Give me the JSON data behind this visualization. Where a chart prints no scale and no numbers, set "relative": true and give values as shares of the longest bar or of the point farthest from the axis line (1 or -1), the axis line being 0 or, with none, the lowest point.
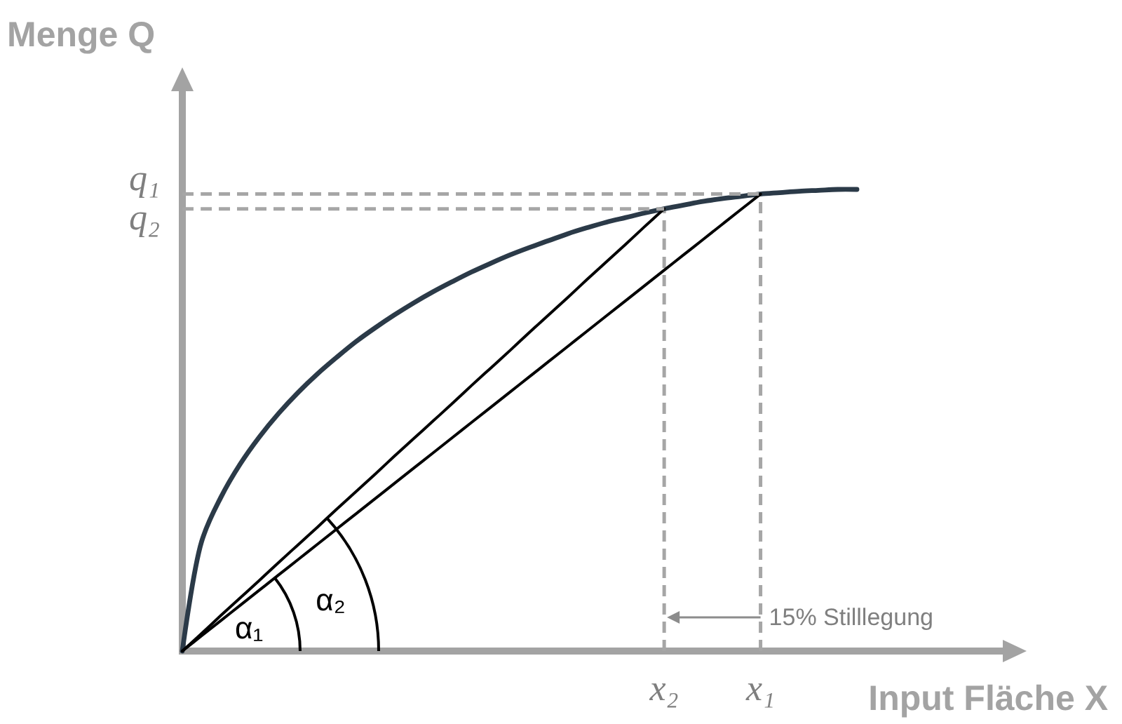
{
  "chart_data": {
    "type": "line",
    "relative": true,
    "xlabel": "Input Fläche X",
    "ylabel": "Menge Q",
    "categories": [
      null,
      null,
      null,
      null,
      null,
      null,
      null,
      null,
      null,
      null,
      null,
      null,
      null,
      null,
      null,
      null,
      null,
      null,
      null,
      null,
      null,
      null,
      null,
      null,
      null,
      "x₂",
      null,
      null,
      null,
      null,
      "x₁",
      null,
      null,
      null,
      null,
      null
    ],
    "series": [
      {
        "color": "#2b3a48",
        "values": [
          0,
          0.237,
          0.333,
          0.405,
          0.464,
          0.515,
          0.56,
          0.6,
          0.636,
          0.67,
          0.7,
          0.728,
          0.754,
          0.778,
          0.8,
          0.821,
          0.84,
          0.858,
          0.874,
          0.889,
          0.904,
          0.917,
          0.929,
          0.939,
          0.949,
          0.958,
          0.966,
          0.974,
          0.98,
          0.985,
          0.99,
          0.993,
          0.996,
          0.998,
          1.0,
          1.0
        ]
      },
      {
        "color": "#000000",
        "values": [
          0,
          0.033,
          0.066,
          0.099,
          0.132,
          0.165,
          0.198,
          0.231,
          0.264,
          0.297,
          0.33,
          0.363,
          0.396,
          0.429,
          0.462,
          0.495,
          0.528,
          0.561,
          0.594,
          0.627,
          0.66,
          0.693,
          0.726,
          0.759,
          0.792,
          0.825,
          0.858,
          0.891,
          0.924,
          0.957,
          0.99,
          null,
          null,
          null,
          null,
          null
        ]
      },
      {
        "color": "#000000",
        "values": [
          0,
          0.038,
          0.077,
          0.115,
          0.153,
          0.192,
          0.23,
          0.268,
          0.307,
          0.345,
          0.383,
          0.422,
          0.46,
          0.498,
          0.536,
          0.575,
          0.613,
          0.651,
          0.69,
          0.728,
          0.766,
          0.805,
          0.843,
          0.881,
          0.92,
          0.958,
          null,
          null,
          null,
          null,
          null,
          null,
          null,
          null,
          null,
          null
        ]
      },
      {
        "name": "q₁",
        "color": "#a6a6a6",
        "line_style": "dashed",
        "values": [
          0.99,
          0.99,
          0.99,
          0.99,
          0.99,
          0.99,
          0.99,
          0.99,
          0.99,
          0.99,
          0.99,
          0.99,
          0.99,
          0.99,
          0.99,
          0.99,
          0.99,
          0.99,
          0.99,
          0.99,
          0.99,
          0.99,
          0.99,
          0.99,
          0.99,
          0.99,
          0.99,
          0.99,
          0.99,
          0.99,
          0.99,
          null,
          null,
          null,
          null,
          null
        ]
      },
      {
        "name": "q₂",
        "color": "#a6a6a6",
        "line_style": "dashed",
        "values": [
          0.958,
          0.958,
          0.958,
          0.958,
          0.958,
          0.958,
          0.958,
          0.958,
          0.958,
          0.958,
          0.958,
          0.958,
          0.958,
          0.958,
          0.958,
          0.958,
          0.958,
          0.958,
          0.958,
          0.958,
          0.958,
          0.958,
          0.958,
          0.958,
          0.958,
          0.958,
          null,
          null,
          null,
          null,
          null,
          null,
          null,
          null,
          null,
          null
        ]
      }
    ],
    "ref_lines": [
      {
        "axis": "x",
        "value": "x₂",
        "color": "#a6a6a6",
        "line_style": "dashed"
      },
      {
        "axis": "x",
        "value": "x₁",
        "color": "#a6a6a6",
        "line_style": "dashed"
      }
    ],
    "annotations": [
      "α₁",
      "α₂",
      "15% Stilllegung"
    ]
  }
}
